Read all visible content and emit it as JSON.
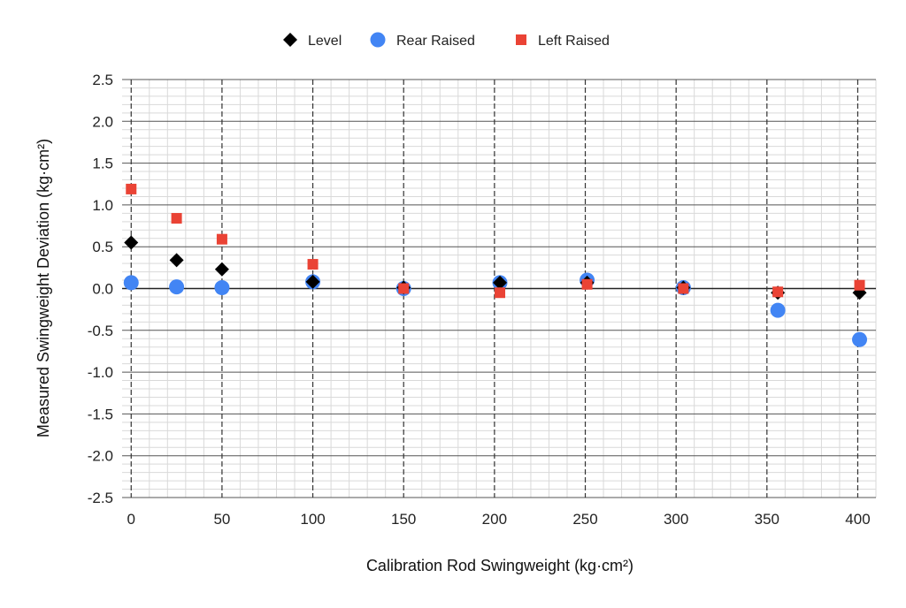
{
  "chart_data": {
    "type": "scatter",
    "title": "",
    "xlabel": "Calibration Rod Swingweight (kg·cm²)",
    "ylabel": "Measured Swingweight Deviation (kg·cm²)",
    "xlim": [
      -5,
      410
    ],
    "ylim": [
      -2.5,
      2.5
    ],
    "xticks": [
      0,
      50,
      100,
      150,
      200,
      250,
      300,
      350,
      400
    ],
    "xtick_labels": [
      "0",
      "50",
      "100",
      "150",
      "200",
      "250",
      "300",
      "350",
      "400"
    ],
    "yticks": [
      2.5,
      2.0,
      1.5,
      1.0,
      0.5,
      0.0,
      -0.5,
      -1.0,
      -1.5,
      -2.0,
      -2.5
    ],
    "ytick_labels": [
      "2.5",
      "2.0",
      "1.5",
      "1.0",
      "0.5",
      "0.0",
      "-0.5",
      "-1.0",
      "-1.5",
      "-2.0",
      "-2.5"
    ],
    "grid": true,
    "legend_position": "top-center",
    "series": [
      {
        "name": "Level",
        "marker": "diamond",
        "color": "#000000",
        "x": [
          0,
          25,
          50,
          100,
          150,
          203,
          251,
          304,
          356,
          401
        ],
        "y": [
          0.55,
          0.34,
          0.23,
          0.08,
          0.01,
          0.07,
          0.07,
          0.01,
          -0.05,
          -0.05
        ]
      },
      {
        "name": "Rear Raised",
        "marker": "circle",
        "color": "#4285f4",
        "x": [
          0,
          25,
          50,
          100,
          150,
          203,
          251,
          304,
          356,
          401
        ],
        "y": [
          0.07,
          0.02,
          0.01,
          0.08,
          0.0,
          0.07,
          0.1,
          0.01,
          -0.26,
          -0.61
        ]
      },
      {
        "name": "Left Raised",
        "marker": "square",
        "color": "#ea4335",
        "x": [
          0,
          25,
          50,
          100,
          150,
          203,
          251,
          304,
          356,
          401
        ],
        "y": [
          1.19,
          0.84,
          0.59,
          0.29,
          0.0,
          -0.05,
          0.05,
          0.0,
          -0.04,
          0.04
        ]
      }
    ]
  }
}
